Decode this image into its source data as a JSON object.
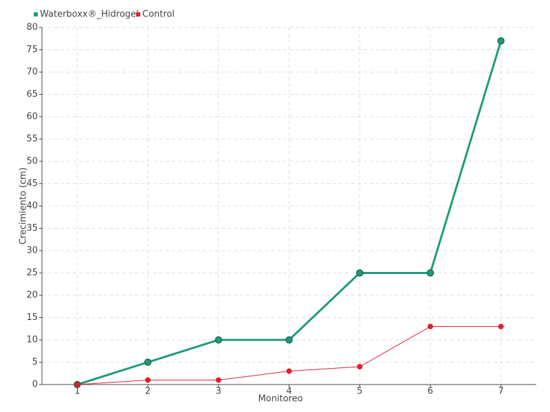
{
  "chart_data": {
    "type": "line",
    "categories": [
      "1",
      "2",
      "3",
      "4",
      "5",
      "6",
      "7"
    ],
    "series": [
      {
        "name": "Waterboxx®_Hidrogel",
        "color": "#1f9a7c",
        "values": [
          0,
          5,
          10,
          10,
          25,
          25,
          77
        ]
      },
      {
        "name": "Control",
        "color": "#e31e2d",
        "values": [
          0,
          1,
          1,
          3,
          4,
          13,
          13
        ]
      }
    ],
    "x_label": "Monitoreo",
    "y_label": "Crecimiento (cm)",
    "ylim": [
      0,
      80
    ],
    "yticks": [
      0,
      5,
      10,
      15,
      20,
      25,
      30,
      35,
      40,
      45,
      50,
      55,
      60,
      65,
      70,
      75,
      80
    ],
    "grid": true,
    "legend": "top-left"
  }
}
